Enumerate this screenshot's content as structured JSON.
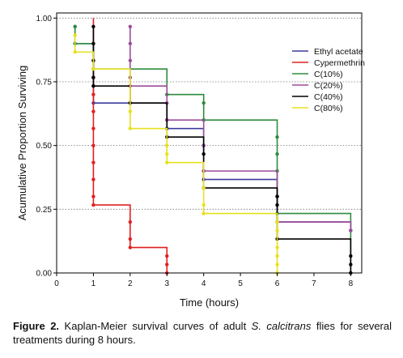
{
  "caption": {
    "label": "Figure 2.",
    "text_before": " Kaplan-Meier survival curves of adult ",
    "species": "S. calcitrans",
    "text_after": " flies for several treatments during 8 hours."
  },
  "chart_data": {
    "type": "line",
    "title": "",
    "xlabel": "Time (hours)",
    "ylabel": "Acumulative Proportion Surviving",
    "xlim": [
      0,
      8.3
    ],
    "ylim": [
      0,
      1.02
    ],
    "x_ticks": [
      0,
      1,
      2,
      3,
      4,
      5,
      6,
      7,
      8
    ],
    "y_ticks": [
      0,
      0.25,
      0.5,
      0.75,
      1.0
    ],
    "y_tick_labels": [
      "0.00",
      "0.25",
      "0.50",
      "0.75",
      "1.00"
    ],
    "grid": "horizontal dotted at y ticks",
    "legend_position": "top-right",
    "series": [
      {
        "name": "Ethyl acetate",
        "color": "#3c3c9c",
        "steps": [
          [
            0.5,
            0.9667
          ],
          [
            0.5,
            0.9
          ],
          [
            1,
            0.6667
          ],
          [
            3,
            0.5667
          ],
          [
            4,
            0.3667
          ],
          [
            6,
            0.2
          ],
          [
            8,
            0.1667
          ]
        ],
        "points": [
          [
            0.5,
            0.9667
          ],
          [
            0.5,
            0.9
          ],
          [
            1,
            0.8
          ],
          [
            1,
            0.7333
          ],
          [
            1,
            0.6667
          ],
          [
            3,
            0.6
          ],
          [
            3,
            0.5667
          ],
          [
            4,
            0.5
          ],
          [
            4,
            0.4
          ],
          [
            4,
            0.3667
          ],
          [
            6,
            0.3
          ],
          [
            6,
            0.2
          ],
          [
            8,
            0.1667
          ]
        ]
      },
      {
        "name": "Cypermethrin",
        "color": "#e02020",
        "steps": [
          [
            1,
            1.0
          ],
          [
            1,
            0.2667
          ],
          [
            2,
            0.1
          ],
          [
            3,
            0.0
          ]
        ],
        "points": [
          [
            1,
            0.9
          ],
          [
            1,
            0.8333
          ],
          [
            1,
            0.7667
          ],
          [
            1,
            0.7
          ],
          [
            1,
            0.6333
          ],
          [
            1,
            0.5667
          ],
          [
            1,
            0.5
          ],
          [
            1,
            0.4333
          ],
          [
            1,
            0.3667
          ],
          [
            1,
            0.3
          ],
          [
            1,
            0.2667
          ],
          [
            2,
            0.2
          ],
          [
            2,
            0.1333
          ],
          [
            2,
            0.1
          ],
          [
            3,
            0.0667
          ],
          [
            3,
            0.0333
          ],
          [
            3,
            0.0
          ]
        ]
      },
      {
        "name": "C(10%)",
        "color": "#2e8b3e",
        "steps": [
          [
            0.5,
            0.9667
          ],
          [
            0.5,
            0.9
          ],
          [
            1,
            0.8
          ],
          [
            3,
            0.7
          ],
          [
            4,
            0.6
          ],
          [
            6,
            0.2333
          ],
          [
            8,
            0.0
          ]
        ],
        "points": [
          [
            0.5,
            0.9667
          ],
          [
            0.5,
            0.9
          ],
          [
            1,
            0.8
          ],
          [
            3,
            0.7
          ],
          [
            4,
            0.6667
          ],
          [
            4,
            0.6
          ],
          [
            6,
            0.5333
          ],
          [
            6,
            0.4667
          ],
          [
            6,
            0.4
          ],
          [
            6,
            0.2333
          ],
          [
            8,
            0.1667
          ],
          [
            8,
            0.0
          ]
        ]
      },
      {
        "name": "C(20%)",
        "color": "#9c4c9c",
        "steps": [
          [
            2,
            0.9667
          ],
          [
            2,
            0.7333
          ],
          [
            3,
            0.6
          ],
          [
            4,
            0.4
          ],
          [
            6,
            0.2
          ],
          [
            8,
            0.1667
          ]
        ],
        "points": [
          [
            2,
            0.9667
          ],
          [
            2,
            0.9
          ],
          [
            2,
            0.8333
          ],
          [
            2,
            0.7667
          ],
          [
            2,
            0.7333
          ],
          [
            3,
            0.6667
          ],
          [
            3,
            0.6
          ],
          [
            4,
            0.5
          ],
          [
            4,
            0.4
          ],
          [
            6,
            0.3
          ],
          [
            6,
            0.2
          ],
          [
            8,
            0.1667
          ]
        ]
      },
      {
        "name": "C(40%)",
        "color": "#000000",
        "steps": [
          [
            1,
            0.9667
          ],
          [
            1,
            0.7333
          ],
          [
            2,
            0.6667
          ],
          [
            3,
            0.5333
          ],
          [
            4,
            0.3333
          ],
          [
            6,
            0.1333
          ],
          [
            8,
            0.0
          ]
        ],
        "points": [
          [
            1,
            0.9667
          ],
          [
            1,
            0.9
          ],
          [
            1,
            0.8333
          ],
          [
            1,
            0.7667
          ],
          [
            1,
            0.7333
          ],
          [
            2,
            0.6667
          ],
          [
            3,
            0.5333
          ],
          [
            4,
            0.4667
          ],
          [
            4,
            0.3333
          ],
          [
            6,
            0.3
          ],
          [
            6,
            0.2667
          ],
          [
            6,
            0.1333
          ],
          [
            8,
            0.0667
          ],
          [
            8,
            0.0333
          ],
          [
            8,
            0.0
          ]
        ]
      },
      {
        "name": "C(80%)",
        "color": "#e8e020",
        "steps": [
          [
            0.5,
            0.9333
          ],
          [
            0.5,
            0.8667
          ],
          [
            1,
            0.8
          ],
          [
            2,
            0.5667
          ],
          [
            3,
            0.4333
          ],
          [
            4,
            0.2333
          ],
          [
            6,
            0.0
          ]
        ],
        "points": [
          [
            0.5,
            0.9333
          ],
          [
            0.5,
            0.8667
          ],
          [
            1,
            0.8
          ],
          [
            2,
            0.6333
          ],
          [
            2,
            0.5667
          ],
          [
            3,
            0.5
          ],
          [
            3,
            0.4667
          ],
          [
            3,
            0.4333
          ],
          [
            4,
            0.3333
          ],
          [
            4,
            0.2667
          ],
          [
            4,
            0.2333
          ],
          [
            6,
            0.2
          ],
          [
            6,
            0.1667
          ],
          [
            6,
            0.1
          ],
          [
            6,
            0.0667
          ],
          [
            6,
            0.0333
          ],
          [
            6,
            0.0
          ]
        ]
      }
    ]
  }
}
